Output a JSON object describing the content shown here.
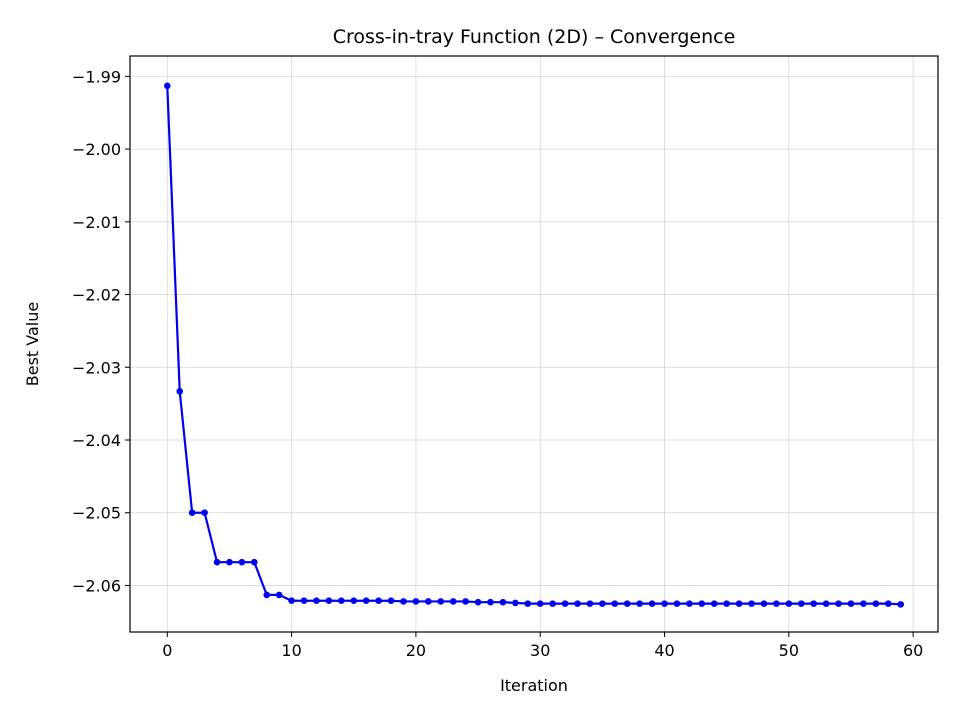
{
  "chart_data": {
    "type": "line",
    "title": "Cross-in-tray Function (2D) – Convergence",
    "xlabel": "Iteration",
    "ylabel": "Best Value",
    "xlim": [
      -3,
      62
    ],
    "ylim": [
      -2.0664,
      -1.9872
    ],
    "xticks": [
      0,
      10,
      20,
      30,
      40,
      50,
      60
    ],
    "xtick_labels": [
      "0",
      "10",
      "20",
      "30",
      "40",
      "50",
      "60"
    ],
    "yticks": [
      -1.99,
      -2.0,
      -2.01,
      -2.02,
      -2.03,
      -2.04,
      -2.05,
      -2.06
    ],
    "ytick_labels": [
      "−1.99",
      "−2.00",
      "−2.01",
      "−2.02",
      "−2.03",
      "−2.04",
      "−2.05",
      "−2.06"
    ],
    "grid": true,
    "color": "#0000ee",
    "series": [
      {
        "x": [
          0,
          1,
          2,
          3,
          4,
          5,
          6,
          7,
          8,
          9,
          10,
          11,
          12,
          13,
          14,
          15,
          16,
          17,
          18,
          19,
          20,
          21,
          22,
          23,
          24,
          25,
          26,
          27,
          28,
          29,
          30,
          31,
          32,
          33,
          34,
          35,
          36,
          37,
          38,
          39,
          40,
          41,
          42,
          43,
          44,
          45,
          46,
          47,
          48,
          49,
          50,
          51,
          52,
          53,
          54,
          55,
          56,
          57,
          58,
          59
        ],
        "values": [
          -1.9913,
          -2.0333,
          -2.05,
          -2.05,
          -2.0568,
          -2.0568,
          -2.0568,
          -2.0568,
          -2.0613,
          -2.0613,
          -2.0621,
          -2.0621,
          -2.0621,
          -2.0621,
          -2.0621,
          -2.0621,
          -2.0621,
          -2.0621,
          -2.0621,
          -2.0622,
          -2.0622,
          -2.0622,
          -2.0622,
          -2.0622,
          -2.0622,
          -2.0623,
          -2.0623,
          -2.0623,
          -2.0624,
          -2.0625,
          -2.0625,
          -2.0625,
          -2.0625,
          -2.0625,
          -2.0625,
          -2.0625,
          -2.0625,
          -2.0625,
          -2.0625,
          -2.0625,
          -2.0625,
          -2.0625,
          -2.0625,
          -2.0625,
          -2.0625,
          -2.0625,
          -2.0625,
          -2.0625,
          -2.0625,
          -2.0625,
          -2.0625,
          -2.0625,
          -2.0625,
          -2.0625,
          -2.0625,
          -2.0625,
          -2.0625,
          -2.0625,
          -2.0625,
          -2.0626
        ]
      }
    ]
  }
}
